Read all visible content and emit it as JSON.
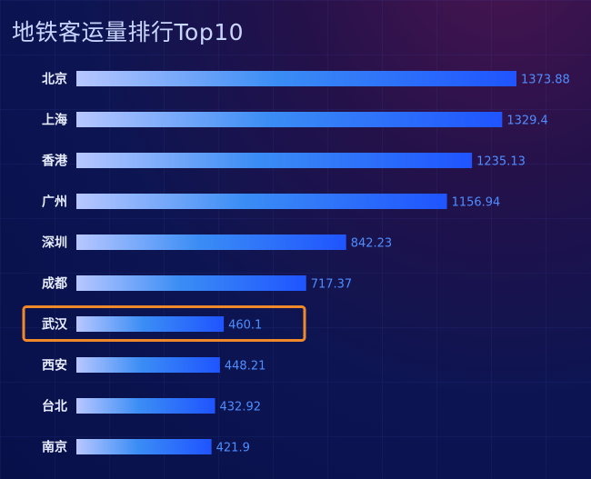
{
  "title": "地铁客运量排行Top10",
  "colors": {
    "bar_start": "#b8c7ff",
    "bar_mid": "#3b8df5",
    "bar_end": "#1f54ff",
    "value_text": "#4f8dff",
    "highlight_border": "#f0892a"
  },
  "highlight_category": "武汉",
  "chart_data": {
    "type": "bar",
    "orientation": "horizontal",
    "title": "地铁客运量排行Top10",
    "categories": [
      "北京",
      "上海",
      "香港",
      "广州",
      "深圳",
      "成都",
      "武汉",
      "西安",
      "台北",
      "南京"
    ],
    "values": [
      1373.88,
      1329.4,
      1235.13,
      1156.94,
      842.23,
      717.37,
      460.1,
      448.21,
      432.92,
      421.9
    ],
    "value_labels": [
      "1373.88",
      "1329.4",
      "1235.13",
      "1156.94",
      "842.23",
      "717.37",
      "460.1",
      "448.21",
      "432.92",
      "421.9"
    ],
    "xlabel": "",
    "ylabel": "",
    "xlim": [
      0,
      1373.88
    ],
    "grid": false,
    "legend": "none"
  }
}
